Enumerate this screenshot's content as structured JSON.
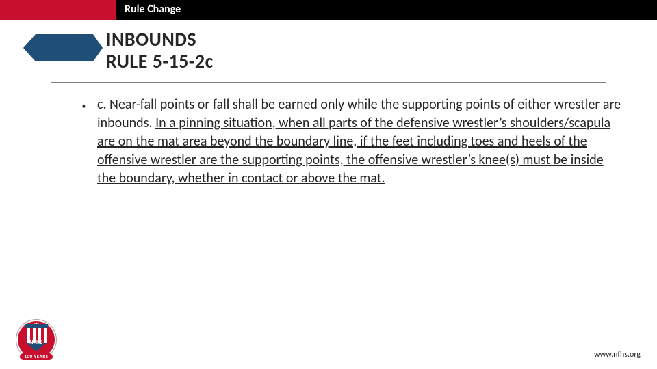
{
  "colors": {
    "red": "#c8102e",
    "blue": "#1f4e79",
    "text": "#262626",
    "rule": "#7f7f7f"
  },
  "banner": {
    "label": "Rule Change"
  },
  "heading": {
    "line1": "INBOUNDS",
    "line2": "RULE 5-15-2c"
  },
  "body": {
    "prefix": "c. Near-fall points or fall shall be earned only while the supporting points of either wrestler are inbounds. ",
    "underlined": "In a pinning situation, when all parts of the defensive wrestler’s shoulders/scapula are on the mat area beyond the boundary line, if the feet including toes and heels of the offensive wrestler are the supporting points, the offensive wrestler’s knee(s) must be inside the boundary, whether in contact or above the mat."
  },
  "footer": {
    "url": "www.nfhs.org"
  },
  "badge": {
    "initials": "NFHS",
    "banner": "100 YEARS"
  }
}
